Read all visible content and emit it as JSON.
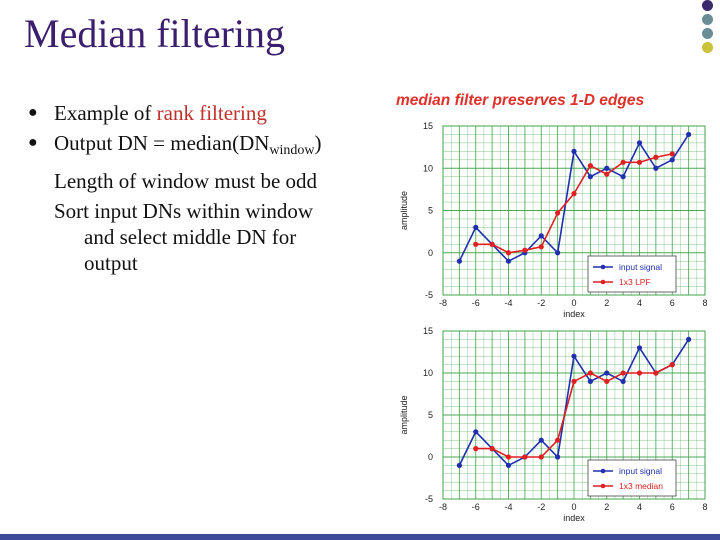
{
  "slide": {
    "title": "Median filtering",
    "dot_colors": [
      "#3b2a6e",
      "#6a8d95",
      "#6a8d95",
      "#c9c23a"
    ],
    "bullets": [
      {
        "prefix": "Example of ",
        "highlight": "rank filtering"
      },
      {
        "text": "Output DN = median(DN",
        "subscript": "window",
        "suffix": ")"
      }
    ],
    "sub_lines": [
      "Length of window must be odd",
      "Sort input DNs within window",
      "and select middle DN for",
      "output"
    ],
    "figure_caption": "median filter preserves 1-D edges"
  },
  "chart_data": [
    {
      "type": "line",
      "xlabel": "index",
      "ylabel": "amplitude",
      "xlim": [
        -8,
        8
      ],
      "ylim": [
        -5,
        15
      ],
      "x_ticks": [
        -8,
        -6,
        -4,
        -2,
        0,
        2,
        4,
        6,
        8
      ],
      "y_ticks": [
        -5,
        0,
        5,
        10,
        15
      ],
      "grid": true,
      "legend": "bottom-right",
      "series": [
        {
          "name": "input signal",
          "color": "#1f2fb0",
          "x": [
            -7,
            -6,
            -5,
            -4,
            -3,
            -2,
            -1,
            0,
            1,
            2,
            3,
            4,
            5,
            6,
            7
          ],
          "y": [
            -1,
            3,
            1,
            -1,
            0,
            2,
            0,
            12,
            9,
            10,
            9,
            13,
            10,
            11,
            14
          ]
        },
        {
          "name": "1x3 LPF",
          "color": "#e02020",
          "x": [
            -6,
            -5,
            -4,
            -3,
            -2,
            -1,
            0,
            1,
            2,
            3,
            4,
            5,
            6
          ],
          "y": [
            1,
            1,
            0,
            0.3,
            0.7,
            4.7,
            7,
            10.3,
            9.3,
            10.7,
            10.7,
            11.3,
            11.7
          ]
        }
      ]
    },
    {
      "type": "line",
      "xlabel": "index",
      "ylabel": "amplitude",
      "xlim": [
        -8,
        8
      ],
      "ylim": [
        -5,
        15
      ],
      "x_ticks": [
        -8,
        -6,
        -4,
        -2,
        0,
        2,
        4,
        6,
        8
      ],
      "y_ticks": [
        -5,
        0,
        5,
        10,
        15
      ],
      "grid": true,
      "legend": "bottom-right",
      "series": [
        {
          "name": "input signal",
          "color": "#1f2fb0",
          "x": [
            -7,
            -6,
            -5,
            -4,
            -3,
            -2,
            -1,
            0,
            1,
            2,
            3,
            4,
            5,
            6,
            7
          ],
          "y": [
            -1,
            3,
            1,
            -1,
            0,
            2,
            0,
            12,
            9,
            10,
            9,
            13,
            10,
            11,
            14
          ]
        },
        {
          "name": "1x3 median",
          "color": "#e02020",
          "x": [
            -6,
            -5,
            -4,
            -3,
            -2,
            -1,
            0,
            1,
            2,
            3,
            4,
            5,
            6
          ],
          "y": [
            1,
            1,
            0,
            0,
            0,
            2,
            9,
            10,
            9,
            10,
            10,
            10,
            11
          ]
        }
      ]
    }
  ]
}
